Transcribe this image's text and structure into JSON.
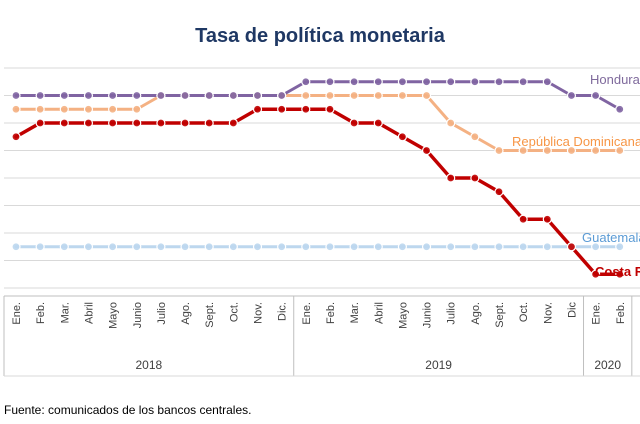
{
  "chart_data": {
    "type": "line",
    "title": "Tasa de política monetaria",
    "months": [
      "Ene.",
      "Feb.",
      "Mar.",
      "Abril",
      "Mayo",
      "Junio",
      "Julio",
      "Ago.",
      "Sept.",
      "Oct.",
      "Nov.",
      "Dic.",
      "Ene.",
      "Feb.",
      "Mar.",
      "Abril",
      "Mayo",
      "Junio",
      "Julio",
      "Ago.",
      "Sept.",
      "Oct.",
      "Nov.",
      "Dic",
      "Ene.",
      "Feb."
    ],
    "years": [
      {
        "label": "2018",
        "start": 0,
        "end": 11
      },
      {
        "label": "2019",
        "start": 12,
        "end": 23
      },
      {
        "label": "2020",
        "start": 24,
        "end": 25
      }
    ],
    "ylim": [
      2.0,
      6.0
    ],
    "grid": true,
    "series": [
      {
        "name": "Honduras",
        "color": "#8064a2",
        "values": [
          5.5,
          5.5,
          5.5,
          5.5,
          5.5,
          5.5,
          5.5,
          5.5,
          5.5,
          5.5,
          5.5,
          5.5,
          5.75,
          5.75,
          5.75,
          5.75,
          5.75,
          5.75,
          5.75,
          5.75,
          5.75,
          5.75,
          5.75,
          5.5,
          5.5,
          5.25
        ]
      },
      {
        "name": "República Dominicana",
        "color": "#f4b183",
        "values": [
          5.25,
          5.25,
          5.25,
          5.25,
          5.25,
          5.25,
          5.5,
          5.5,
          5.5,
          5.5,
          5.5,
          5.5,
          5.5,
          5.5,
          5.5,
          5.5,
          5.5,
          5.5,
          5.0,
          4.75,
          4.5,
          4.5,
          4.5,
          4.5,
          4.5,
          4.5
        ]
      },
      {
        "name": "Guatemala",
        "color": "#9dc3e6",
        "values": [
          2.75,
          2.75,
          2.75,
          2.75,
          2.75,
          2.75,
          2.75,
          2.75,
          2.75,
          2.75,
          2.75,
          2.75,
          2.75,
          2.75,
          2.75,
          2.75,
          2.75,
          2.75,
          2.75,
          2.75,
          2.75,
          2.75,
          2.75,
          2.75,
          2.75,
          2.75
        ]
      },
      {
        "name": "Costa Rica",
        "color": "#c00000",
        "values": [
          4.75,
          5.0,
          5.0,
          5.0,
          5.0,
          5.0,
          5.0,
          5.0,
          5.0,
          5.0,
          5.25,
          5.25,
          5.25,
          5.25,
          5.0,
          5.0,
          4.75,
          4.5,
          4.0,
          4.0,
          3.75,
          3.25,
          3.25,
          2.75,
          2.25,
          2.25
        ]
      }
    ],
    "series_label_colors": {
      "Honduras": "#7f6a9c",
      "República Dominicana": "#f79646",
      "Guatemala": "#5b9bd5",
      "Costa Rica": "#c00000"
    },
    "line_colors": {
      "Guatemala": "#bdd7ee"
    }
  },
  "source_note": "Fuente: comunicados de los bancos centrales."
}
